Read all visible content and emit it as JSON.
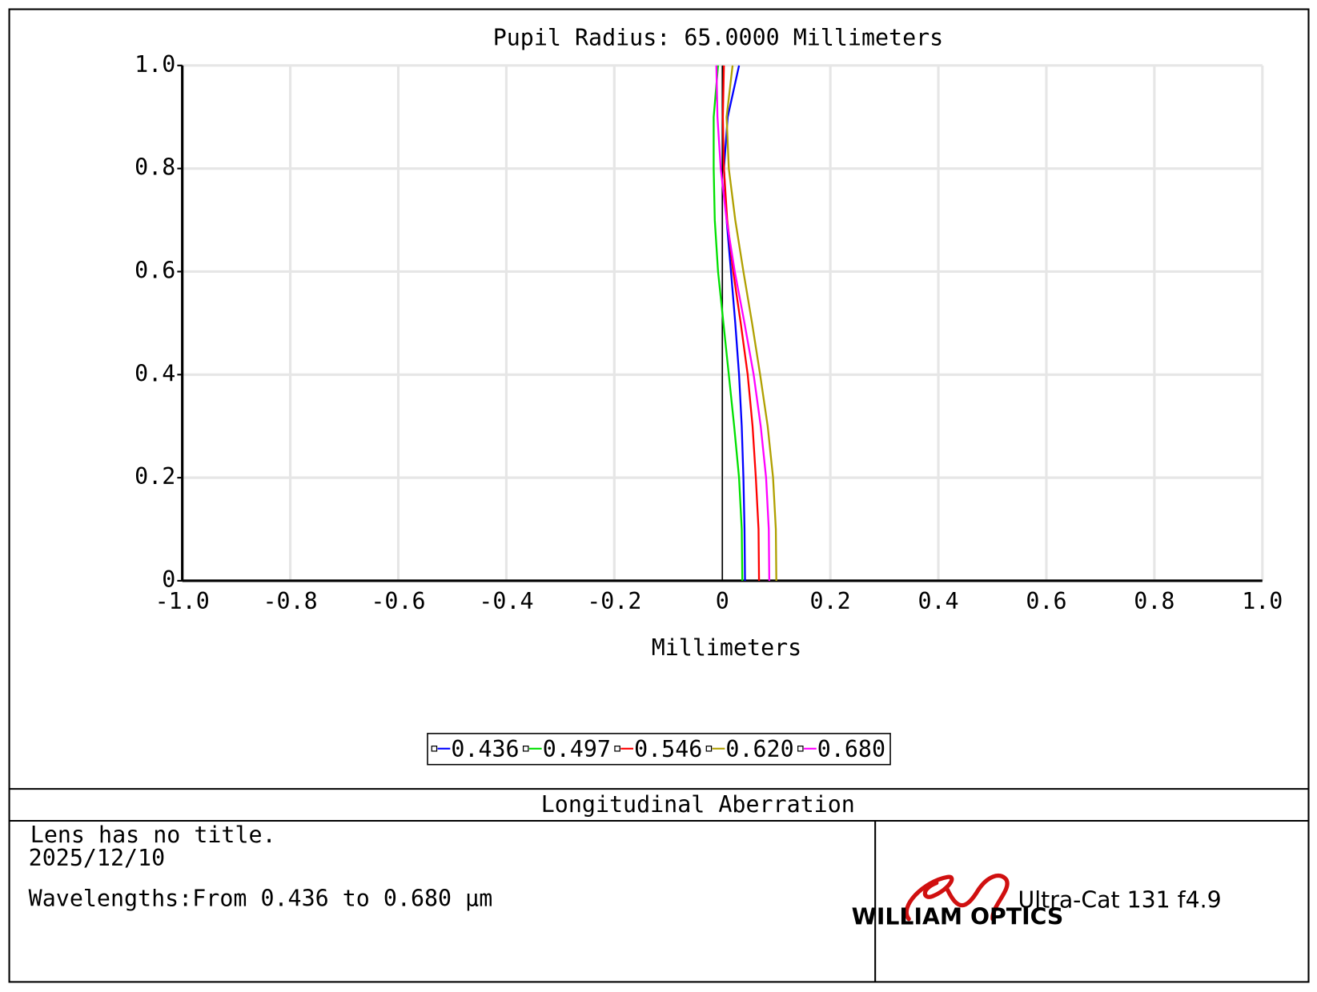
{
  "chart_data": {
    "type": "line",
    "title": "Pupil Radius: 65.0000 Millimeters",
    "xlabel": "Millimeters",
    "y": [
      0,
      0.1,
      0.2,
      0.3,
      0.4,
      0.5,
      0.6,
      0.7,
      0.8,
      0.9,
      1.0
    ],
    "series": [
      {
        "name": "0.436",
        "color": "#0000ff",
        "values": [
          0.042,
          0.041,
          0.039,
          0.036,
          0.031,
          0.024,
          0.016,
          0.008,
          0.003,
          0.01,
          0.031
        ]
      },
      {
        "name": "0.497",
        "color": "#00e000",
        "values": [
          0.037,
          0.036,
          0.031,
          0.022,
          0.012,
          0.002,
          -0.008,
          -0.014,
          -0.016,
          -0.016,
          -0.008
        ]
      },
      {
        "name": "0.546",
        "color": "#ff0000",
        "values": [
          0.068,
          0.067,
          0.062,
          0.056,
          0.047,
          0.034,
          0.02,
          0.009,
          0.003,
          0.001,
          0.003
        ]
      },
      {
        "name": "0.620",
        "color": "#b0a000",
        "values": [
          0.1,
          0.099,
          0.094,
          0.084,
          0.07,
          0.055,
          0.039,
          0.024,
          0.012,
          0.008,
          0.019
        ]
      },
      {
        "name": "0.680",
        "color": "#ff00ff",
        "values": [
          0.087,
          0.086,
          0.081,
          0.071,
          0.058,
          0.041,
          0.023,
          0.008,
          -0.003,
          -0.009,
          -0.011
        ]
      }
    ],
    "xlim": [
      -1,
      1
    ],
    "ylim": [
      0,
      1
    ],
    "xticks": [
      {
        "value": -1,
        "label": "-1.0"
      },
      -0.8,
      -0.6,
      -0.4,
      -0.2,
      0,
      0.2,
      0.4,
      0.6,
      0.8,
      {
        "value": 1,
        "label": "1.0"
      }
    ],
    "yticks": [
      0,
      0.2,
      0.4,
      0.6,
      0.8,
      {
        "value": 1,
        "label": "1.0"
      }
    ],
    "grid": true
  },
  "footer": {
    "plot_name": "Longitudinal Aberration",
    "lines": [
      "Lens has no title.",
      "2025/12/10",
      "Wavelengths:From 0.436 to 0.680 µm"
    ],
    "logo_text": "WILLIAM OPTICS",
    "product": "Ultra-Cat 131 f4.9"
  }
}
